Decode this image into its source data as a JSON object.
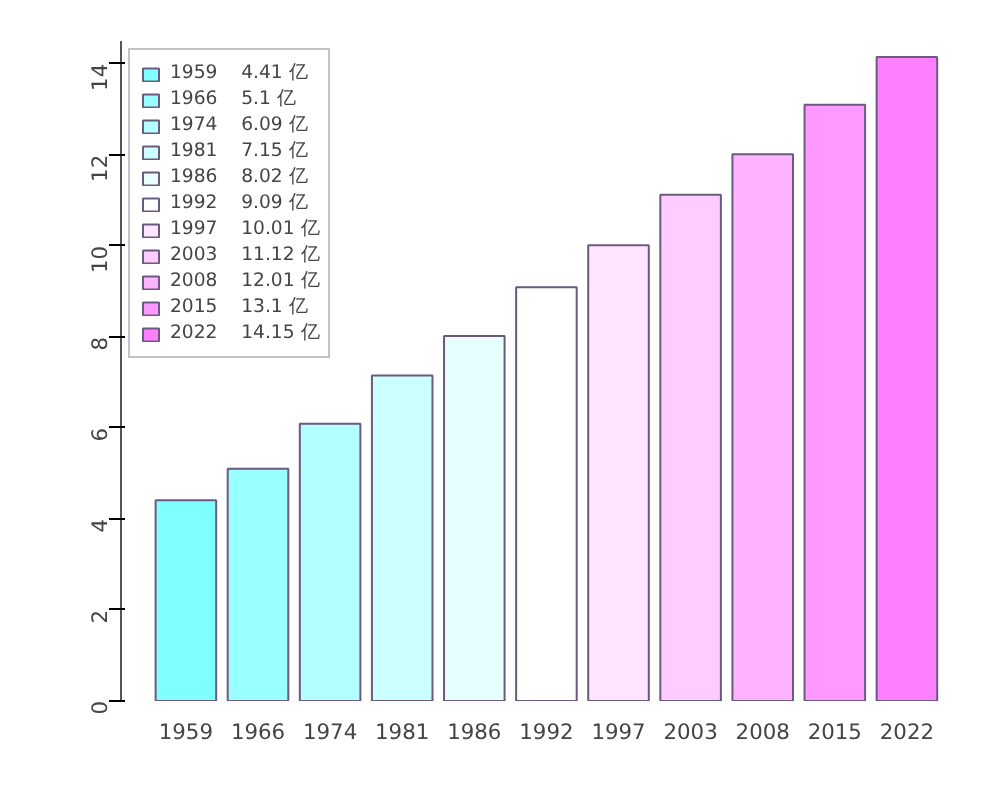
{
  "chart_data": {
    "type": "bar",
    "categories": [
      "1959",
      "1966",
      "1974",
      "1981",
      "1986",
      "1992",
      "1997",
      "2003",
      "2008",
      "2015",
      "2022"
    ],
    "series": [
      {
        "name": "1959    4.41 亿",
        "color": "#80ffff",
        "values": [
          4.41,
          null,
          null,
          null,
          null,
          null,
          null,
          null,
          null,
          null,
          null
        ]
      },
      {
        "name": "1966    5.1 亿",
        "color": "#99ffff",
        "values": [
          null,
          5.1,
          null,
          null,
          null,
          null,
          null,
          null,
          null,
          null,
          null
        ]
      },
      {
        "name": "1974    6.09 亿",
        "color": "#b3ffff",
        "values": [
          null,
          null,
          6.09,
          null,
          null,
          null,
          null,
          null,
          null,
          null,
          null
        ]
      },
      {
        "name": "1981    7.15 亿",
        "color": "#ccffff",
        "values": [
          null,
          null,
          null,
          7.15,
          null,
          null,
          null,
          null,
          null,
          null,
          null
        ]
      },
      {
        "name": "1986    8.02 亿",
        "color": "#e6ffff",
        "values": [
          null,
          null,
          null,
          null,
          8.02,
          null,
          null,
          null,
          null,
          null,
          null
        ]
      },
      {
        "name": "1992    9.09 亿",
        "color": "#ffffff",
        "values": [
          null,
          null,
          null,
          null,
          null,
          9.09,
          null,
          null,
          null,
          null,
          null
        ]
      },
      {
        "name": "1997    10.01 亿",
        "color": "#ffe6ff",
        "values": [
          null,
          null,
          null,
          null,
          null,
          null,
          10.01,
          null,
          null,
          null,
          null
        ]
      },
      {
        "name": "2003    11.12 亿",
        "color": "#ffccff",
        "values": [
          null,
          null,
          null,
          null,
          null,
          null,
          null,
          11.12,
          null,
          null,
          null
        ]
      },
      {
        "name": "2008    12.01 亿",
        "color": "#ffb3ff",
        "values": [
          null,
          null,
          null,
          null,
          null,
          null,
          null,
          null,
          12.01,
          null,
          null
        ]
      },
      {
        "name": "2015    13.1 亿",
        "color": "#ff99ff",
        "values": [
          null,
          null,
          null,
          null,
          null,
          null,
          null,
          null,
          null,
          13.1,
          null
        ]
      },
      {
        "name": "2022    14.15 亿",
        "color": "#ff80ff",
        "values": [
          null,
          null,
          null,
          null,
          null,
          null,
          null,
          null,
          null,
          null,
          14.15
        ]
      }
    ],
    "ylim": [
      0,
      14.5
    ],
    "yticks": [
      0,
      2,
      4,
      6,
      8,
      10,
      12,
      14
    ],
    "legend": "top left",
    "grid": false
  }
}
